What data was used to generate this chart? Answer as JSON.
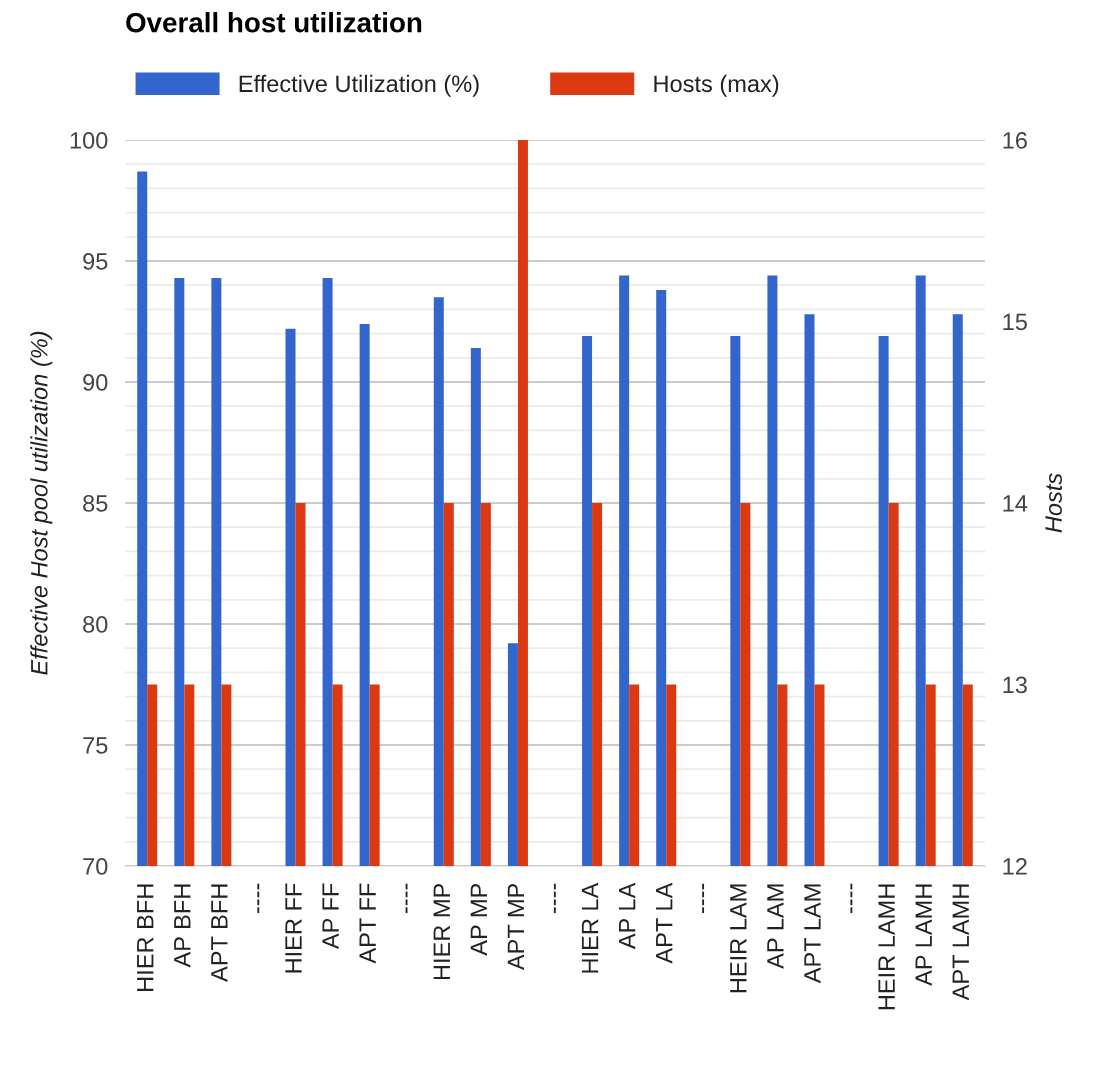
{
  "chart_data": {
    "type": "bar",
    "title": "Overall host utilization",
    "categories": [
      "HIER BFH",
      "AP BFH",
      "APT BFH",
      "----",
      "HIER FF",
      "AP FF",
      "APT FF",
      "----",
      "HIER MP",
      "AP MP",
      "APT MP",
      "----",
      "HIER LA",
      "AP LA",
      "APT LA",
      "----",
      "HEIR LAM",
      "AP LAM",
      "APT LAM",
      "----",
      "HEIR LAMH",
      "AP LAMH",
      "APT LAMH"
    ],
    "series": [
      {
        "name": "Effective Utilization (%)",
        "color": "#3366cc",
        "values": [
          98.7,
          94.3,
          94.3,
          null,
          92.2,
          94.3,
          92.4,
          null,
          93.5,
          91.4,
          79.2,
          null,
          91.9,
          94.4,
          93.8,
          null,
          91.9,
          94.4,
          92.8,
          null,
          91.9,
          94.4,
          92.8
        ]
      },
      {
        "name": "Hosts (max)",
        "color": "#dc3912",
        "axis": "y2",
        "values": [
          13,
          13,
          13,
          null,
          14,
          13,
          13,
          null,
          14,
          14,
          16,
          null,
          14,
          13,
          13,
          null,
          14,
          13,
          13,
          null,
          14,
          13,
          13
        ]
      }
    ],
    "ylabel": "Effective Host pool utilization (%)",
    "y2label": "Hosts",
    "ylim": [
      70,
      100
    ],
    "yticks": [
      70,
      75,
      80,
      85,
      90,
      95,
      100
    ],
    "y2lim": [
      12,
      16
    ],
    "y2ticks": [
      12,
      13,
      14,
      15,
      16
    ],
    "grid": "y",
    "legend": "top left"
  }
}
